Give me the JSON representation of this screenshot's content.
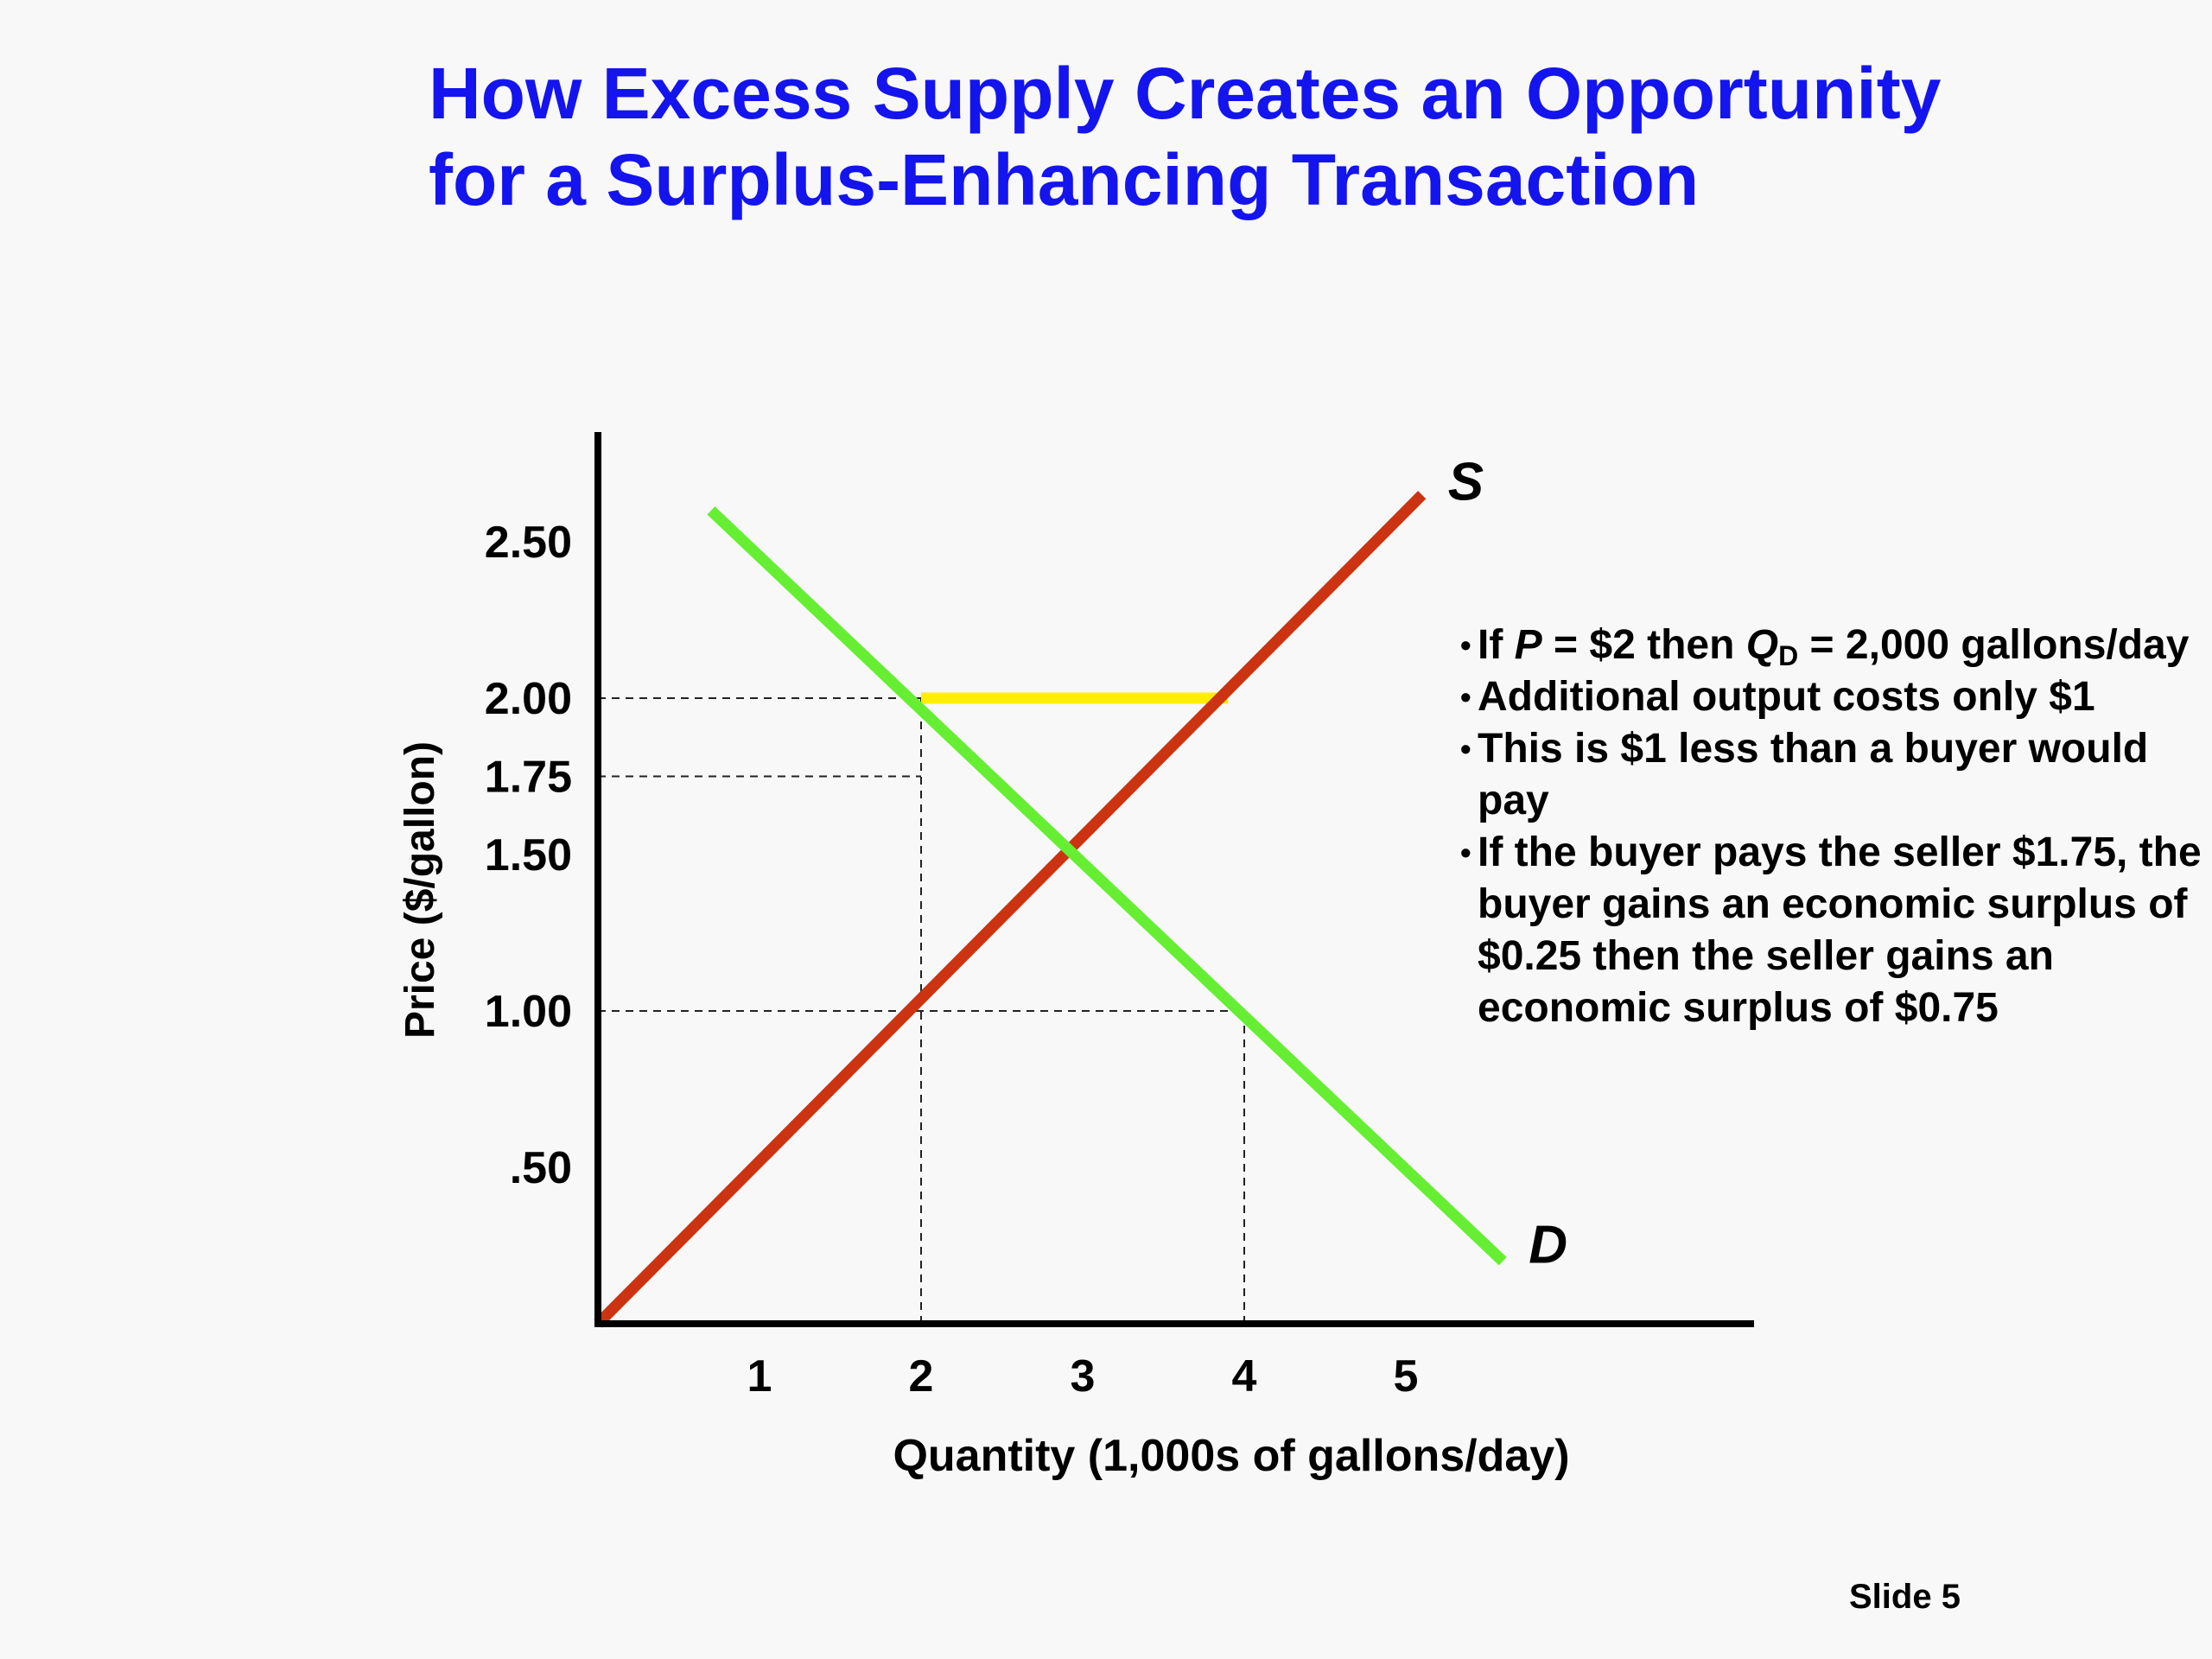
{
  "slide": {
    "title_line1": "How Excess Supply Creates an Opportunity",
    "title_line2": "for a Surplus-Enhancing Transaction",
    "slide_number": "Slide 5"
  },
  "notes": {
    "item1_prefix": "If ",
    "item1_p": "P",
    "item1_mid": " =  $2 then ",
    "item1_q": "Q",
    "item1_sub": "D",
    "item1_suffix": " = 2,000 gallons/day",
    "item2": "Additional output costs only $1",
    "item3": "This is $1 less than a buyer would pay",
    "item4": "If the buyer pays the seller $1.75, the buyer gains an economic surplus of $0.25 then the seller gains an economic surplus of $0.75"
  },
  "chart_data": {
    "type": "line",
    "xlabel": "Quantity (1,000s of gallons/day)",
    "ylabel": "Price ($/gallon)",
    "x_ticks": [
      {
        "value": 1,
        "label": "1"
      },
      {
        "value": 2,
        "label": "2"
      },
      {
        "value": 3,
        "label": "3"
      },
      {
        "value": 4,
        "label": "4"
      },
      {
        "value": 5,
        "label": "5"
      }
    ],
    "y_ticks": [
      {
        "value": 0.5,
        "label": ".50"
      },
      {
        "value": 1.0,
        "label": "1.00"
      },
      {
        "value": 1.5,
        "label": "1.50"
      },
      {
        "value": 1.75,
        "label": "1.75"
      },
      {
        "value": 2.0,
        "label": "2.00"
      },
      {
        "value": 2.5,
        "label": "2.50"
      }
    ],
    "xlim": [
      0,
      7.2
    ],
    "ylim": [
      0,
      2.8
    ],
    "series": [
      {
        "name": "S",
        "color": "#cc3311",
        "points": [
          [
            0,
            0
          ],
          [
            5.1,
            2.65
          ]
        ]
      },
      {
        "name": "D",
        "color": "#66ee33",
        "points": [
          [
            0.7,
            2.6
          ],
          [
            5.6,
            0.2
          ]
        ]
      }
    ],
    "guides": [
      {
        "from": [
          0,
          2.0
        ],
        "to": [
          2,
          2.0
        ]
      },
      {
        "from": [
          0,
          1.75
        ],
        "to": [
          2,
          1.75
        ]
      },
      {
        "from": [
          0,
          1.0
        ],
        "to": [
          4,
          1.0
        ]
      },
      {
        "from": [
          2,
          0
        ],
        "to": [
          2,
          2.0
        ]
      },
      {
        "from": [
          4,
          0
        ],
        "to": [
          4,
          1.0
        ]
      }
    ],
    "highlight": {
      "color": "#ffee00",
      "from": [
        2,
        2.0
      ],
      "to": [
        3.9,
        2.0
      ]
    }
  }
}
